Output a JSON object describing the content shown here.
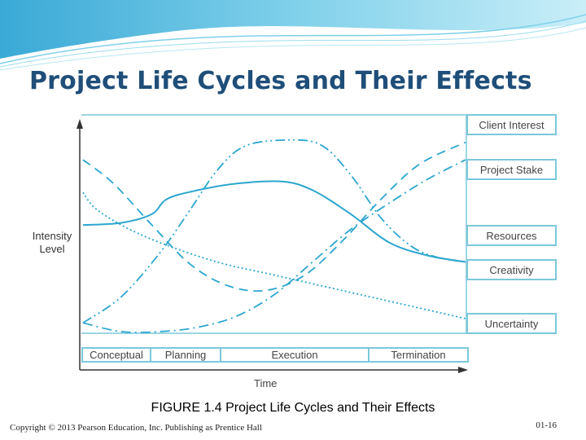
{
  "slide": {
    "title": "Project Life Cycles and Their Effects",
    "caption": "FIGURE 1.4  Project Life Cycles and Their Effects",
    "copyright": "Copyright © 2013 Pearson Education, Inc. Publishing as Prentice Hall",
    "slide_number": "01-16"
  },
  "colors": {
    "title": "#1f4e79",
    "curve": "#2ca6cf",
    "frame": "#7cc8dc",
    "swoosh": "#4fb8dc"
  },
  "chart_data": {
    "type": "line",
    "title": "",
    "xlabel": "Time",
    "ylabel": "Intensity Level",
    "x_unit": "normalized time (0–1)",
    "y_unit": "normalized intensity (0–1)",
    "xlim": [
      0,
      1
    ],
    "ylim": [
      0,
      1
    ],
    "grid": false,
    "axis_ticks": false,
    "legend": "right, labels aligned with curve ends",
    "phases": [
      "Conceptual",
      "Planning",
      "Execution",
      "Termination"
    ],
    "series": [
      {
        "name": "Client Interest",
        "style": "dashed",
        "points": [
          [
            0,
            0.85
          ],
          [
            0.08,
            0.74
          ],
          [
            0.18,
            0.55
          ],
          [
            0.28,
            0.37
          ],
          [
            0.38,
            0.27
          ],
          [
            0.48,
            0.25
          ],
          [
            0.58,
            0.32
          ],
          [
            0.68,
            0.48
          ],
          [
            0.78,
            0.67
          ],
          [
            0.88,
            0.83
          ],
          [
            1,
            0.93
          ]
        ]
      },
      {
        "name": "Project Stake",
        "style": "dash-dot",
        "points": [
          [
            0,
            0.1
          ],
          [
            0.1,
            0.06
          ],
          [
            0.2,
            0.06
          ],
          [
            0.3,
            0.08
          ],
          [
            0.4,
            0.13
          ],
          [
            0.5,
            0.23
          ],
          [
            0.6,
            0.38
          ],
          [
            0.7,
            0.53
          ],
          [
            0.8,
            0.65
          ],
          [
            0.9,
            0.76
          ],
          [
            1,
            0.85
          ]
        ]
      },
      {
        "name": "Resources",
        "style": "solid",
        "points": [
          [
            0,
            0.55
          ],
          [
            0.1,
            0.56
          ],
          [
            0.18,
            0.6
          ],
          [
            0.22,
            0.67
          ],
          [
            0.3,
            0.71
          ],
          [
            0.4,
            0.74
          ],
          [
            0.52,
            0.75
          ],
          [
            0.6,
            0.71
          ],
          [
            0.7,
            0.6
          ],
          [
            0.8,
            0.47
          ],
          [
            0.9,
            0.41
          ],
          [
            1,
            0.38
          ]
        ]
      },
      {
        "name": "Creativity",
        "style": "dash-dot-dot",
        "points": [
          [
            0,
            0.1
          ],
          [
            0.1,
            0.22
          ],
          [
            0.2,
            0.42
          ],
          [
            0.28,
            0.62
          ],
          [
            0.35,
            0.8
          ],
          [
            0.42,
            0.91
          ],
          [
            0.52,
            0.94
          ],
          [
            0.62,
            0.92
          ],
          [
            0.7,
            0.78
          ],
          [
            0.78,
            0.58
          ],
          [
            0.86,
            0.45
          ],
          [
            0.93,
            0.4
          ],
          [
            1,
            0.38
          ]
        ]
      },
      {
        "name": "Uncertainty",
        "style": "dotted",
        "points": [
          [
            0,
            0.7
          ],
          [
            0.03,
            0.63
          ],
          [
            0.1,
            0.55
          ],
          [
            0.2,
            0.47
          ],
          [
            0.35,
            0.38
          ],
          [
            0.5,
            0.32
          ],
          [
            0.65,
            0.26
          ],
          [
            0.8,
            0.2
          ],
          [
            1,
            0.12
          ]
        ]
      }
    ]
  }
}
